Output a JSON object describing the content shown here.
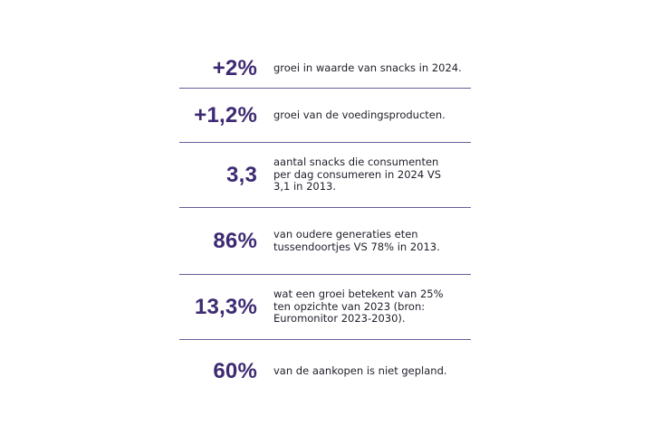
{
  "stats": [
    {
      "value": "+2%",
      "description": "groei in waarde van snacks in 2024."
    },
    {
      "value": "+1,2%",
      "description": "groei van de voedingsproducten."
    },
    {
      "value": "3,3",
      "description": "aantal snacks die consumenten\nper dag consumeren in 2024 VS\n3,1 in 2013."
    },
    {
      "value": "86%",
      "description": "van oudere generaties eten\ntussendoortjes VS 78% in 2013."
    },
    {
      "value": "13,3%",
      "description": "wat een groei betekent van 25%\nten opzichte van 2023 (bron:\nEuromonitor 2023-2030)."
    },
    {
      "value": "60%",
      "description": "van de aankopen is niet gepland."
    }
  ],
  "colors": {
    "accent": "#3d2a72",
    "divider": "#6a5a9a",
    "text": "#1e1e2a"
  }
}
